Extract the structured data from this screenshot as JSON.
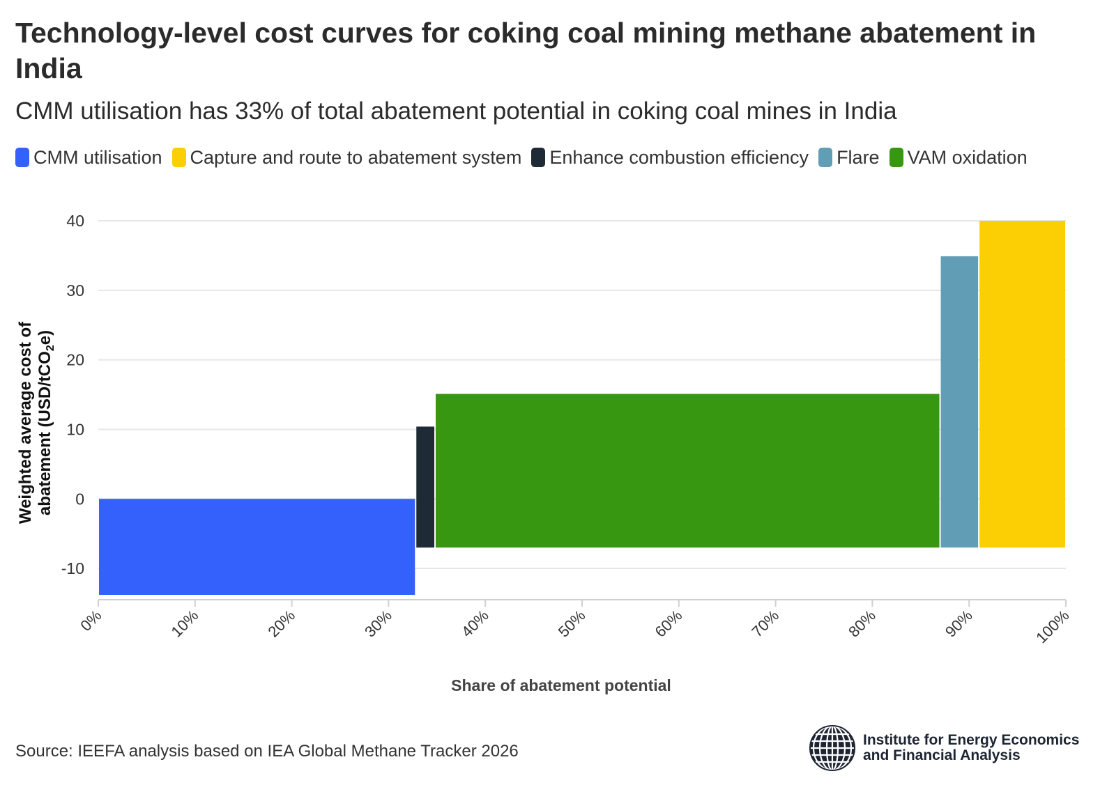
{
  "header": {
    "title": "Technology-level cost curves for coking coal mining methane abatement in India",
    "subtitle": "CMM utilisation has 33% of total abatement potential in coking coal mines in India"
  },
  "footer": {
    "source": "Source: IEEFA analysis based on IEA Global Methane Tracker 2026",
    "logo_line1": "Institute for Energy Economics",
    "logo_line2": "and Financial Analysis"
  },
  "chart_data": {
    "type": "bar",
    "subtype": "marimekko-cost-curve",
    "title": "Technology-level cost curves for coking coal mining methane abatement in India",
    "subtitle": "CMM utilisation has 33% of total abatement potential in coking coal mines in India",
    "xlabel": "Share of abatement potential",
    "ylabel_line1": "Weighted average cost of",
    "ylabel_line2_prefix": "abatement (USD/tCO",
    "ylabel_sub": "2",
    "ylabel_line2_suffix": "e)",
    "xlim": [
      0,
      100
    ],
    "ylim": [
      -14.5,
      40
    ],
    "x_ticks": [
      0,
      10,
      20,
      30,
      40,
      50,
      60,
      70,
      80,
      90,
      100
    ],
    "x_tick_labels": [
      "0%",
      "10%",
      "20%",
      "30%",
      "40%",
      "50%",
      "60%",
      "70%",
      "80%",
      "90%",
      "100%"
    ],
    "y_ticks": [
      -10,
      0,
      10,
      20,
      30,
      40
    ],
    "y_tick_labels": [
      "-10",
      "0",
      "10",
      "20",
      "30",
      "40"
    ],
    "grid": true,
    "legend_position": "top-left",
    "series": [
      {
        "name": "CMM utilisation",
        "color": "#3460fb",
        "x_start": 0,
        "x_end": 32.8,
        "y_low": -13.8,
        "y_high": 0
      },
      {
        "name": "Capture and route to abatement system",
        "color": "#fccf05",
        "x_start": 91.0,
        "x_end": 100,
        "y_low": -7,
        "y_high": 40
      },
      {
        "name": "Enhance combustion efficiency",
        "color": "#1e2a36",
        "x_start": 32.8,
        "x_end": 34.8,
        "y_low": -7,
        "y_high": 10.4
      },
      {
        "name": "Flare",
        "color": "#619eb6",
        "x_start": 87.0,
        "x_end": 91.0,
        "y_low": -7,
        "y_high": 34.9
      },
      {
        "name": "VAM oxidation",
        "color": "#389711",
        "x_start": 34.8,
        "x_end": 87.0,
        "y_low": -7,
        "y_high": 15.1
      }
    ]
  }
}
